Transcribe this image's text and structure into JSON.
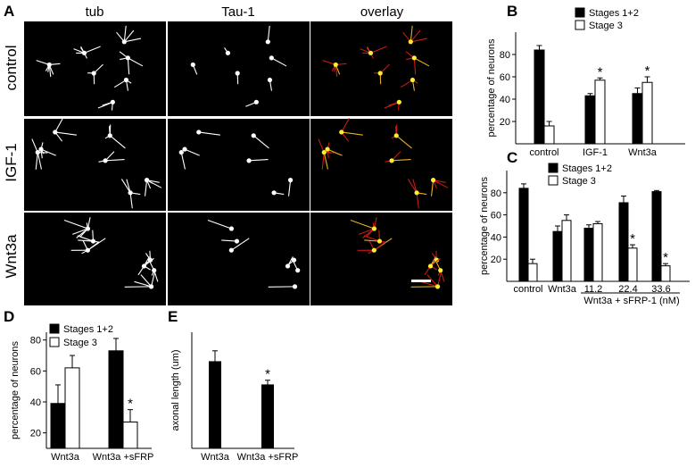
{
  "panel_a": {
    "label": "A",
    "columns": [
      "tub",
      "Tau-1",
      "overlay"
    ],
    "column_colors": [
      "#e8202a",
      "#33cc33",
      "#000000"
    ],
    "rows": [
      "control",
      "IGF-1",
      "Wnt3a"
    ]
  },
  "chart_data": [
    {
      "panel": "B",
      "type": "bar",
      "categories": [
        "control",
        "IGF-1",
        "Wnt3a"
      ],
      "series": [
        {
          "name": "Stages 1+2",
          "values": [
            84,
            43,
            45
          ],
          "errors": [
            4,
            2,
            5
          ],
          "fill": "#000000"
        },
        {
          "name": "Stage 3",
          "values": [
            16,
            57,
            55
          ],
          "errors": [
            4,
            2,
            5
          ],
          "fill": "#ffffff"
        }
      ],
      "significance": [
        null,
        "*",
        "*"
      ],
      "ylabel": "percentage of neurons",
      "ylim": [
        0,
        100
      ],
      "yticks": [
        20,
        40,
        60,
        80
      ],
      "legend": "top-right"
    },
    {
      "panel": "C",
      "type": "bar",
      "categories": [
        "control",
        "Wnt3a",
        "11.2",
        "22.4",
        "33.6"
      ],
      "group_label": "Wnt3a + sFRP-1 (nM)",
      "series": [
        {
          "name": "Stages 1+2",
          "values": [
            84,
            45,
            48,
            71,
            81
          ],
          "errors": [
            4,
            5,
            3,
            6,
            1
          ],
          "fill": "#000000"
        },
        {
          "name": "Stage 3",
          "values": [
            16,
            55,
            52,
            30,
            14
          ],
          "errors": [
            4,
            5,
            2,
            3,
            2
          ],
          "fill": "#ffffff"
        }
      ],
      "significance": [
        null,
        null,
        null,
        "*",
        "*"
      ],
      "ylabel": "percentage of neurons",
      "ylim": [
        0,
        100
      ],
      "yticks": [
        20,
        40,
        60,
        80
      ],
      "legend": "top-left"
    },
    {
      "panel": "D",
      "type": "bar",
      "categories": [
        "Wnt3a",
        "Wnt3a +sFRP"
      ],
      "series": [
        {
          "name": "Stages 1+2",
          "values": [
            39,
            73
          ],
          "errors": [
            12,
            8
          ],
          "fill": "#000000"
        },
        {
          "name": "Stage 3",
          "values": [
            62,
            27
          ],
          "errors": [
            8,
            8
          ],
          "fill": "#ffffff"
        }
      ],
      "significance": [
        null,
        "*"
      ],
      "ylabel": "percentage of neurons",
      "ylim": [
        10,
        85
      ],
      "yticks": [
        20,
        40,
        60,
        80
      ],
      "legend": "top-left"
    },
    {
      "panel": "E",
      "type": "bar",
      "categories": [
        "Wnt3a",
        "Wnt3a +sFRP"
      ],
      "series": [
        {
          "values": [
            112,
            82
          ],
          "errors": [
            14,
            6
          ],
          "fill": "#000000"
        }
      ],
      "significance": [
        null,
        "*"
      ],
      "ylabel": "axonal length (um)",
      "ylim": [
        0,
        150
      ]
    }
  ]
}
